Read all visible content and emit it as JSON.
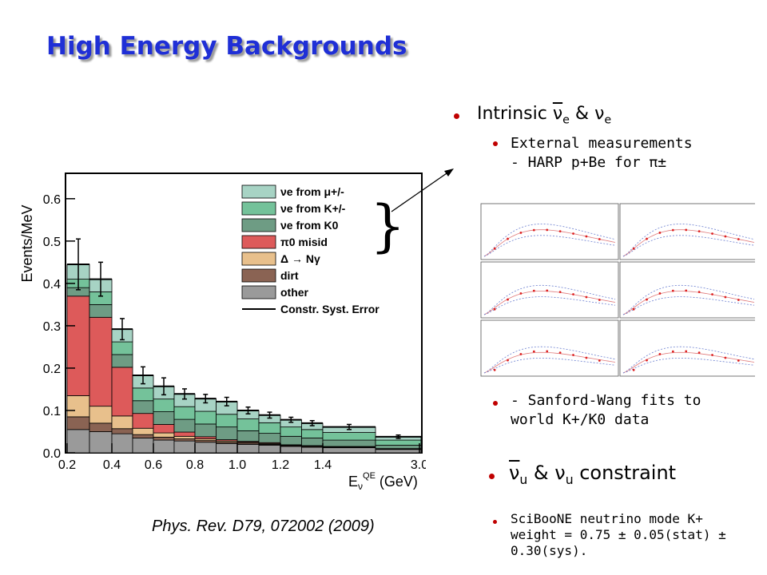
{
  "slide": {
    "title": "High Energy Backgrounds",
    "citation": "Phys. Rev. D79, 072002 (2009)",
    "bullets": {
      "b1_prefix": "Intrinsic ",
      "b1_nu": "ν",
      "b1_sub": "e",
      "b1_mid": " & ν",
      "b1_sub2": "e",
      "b2_line1": "External measurements",
      "b2_line2": " - HARP p+Be for π±",
      "b3_line1": " - Sanford-Wang fits to",
      "b3_line2": "world K+/K0 data",
      "b4_prefix": "ν",
      "b4_sub": "u",
      "b4_mid": " & ν",
      "b4_sub2": "u",
      "b4_suffix": " constraint",
      "b5_line1": "SciBooNE neutrino mode K+",
      "b5_line2": "weight =  0.75 ± 0.05(stat) ±",
      "b5_line3": "0.30(sys)."
    },
    "colors": {
      "title": "#1f2fd6",
      "bullet": "#c00000"
    }
  },
  "chart_data": {
    "type": "bar",
    "stacked": true,
    "ylabel": "Events/MeV",
    "xlabel": "E_ν^QE (GeV)",
    "x_tick_labels": [
      "0.2",
      "0.4",
      "0.6",
      "0.8",
      "1.0",
      "1.2",
      "1.4",
      "3.0"
    ],
    "y_tick_labels": [
      "0.0",
      "0.1",
      "0.2",
      "0.3",
      "0.4",
      "0.5",
      "0.6"
    ],
    "ylim": [
      0,
      0.66
    ],
    "bin_edges": [
      0.2,
      0.3,
      0.4,
      0.5,
      0.6,
      0.7,
      0.8,
      0.9,
      1.0,
      1.1,
      1.2,
      1.3,
      1.4,
      1.5,
      1.6
    ],
    "series": [
      {
        "name": "other",
        "color": "#9a9a9a",
        "values": [
          0.055,
          0.05,
          0.045,
          0.035,
          0.03,
          0.028,
          0.025,
          0.022,
          0.02,
          0.018,
          0.015,
          0.013,
          0.012,
          0.008
        ]
      },
      {
        "name": "dirt",
        "color": "#8a6353",
        "values": [
          0.03,
          0.02,
          0.012,
          0.008,
          0.007,
          0.005,
          0.004,
          0.003,
          0.003,
          0.002,
          0.002,
          0.002,
          0.001,
          0.001
        ]
      },
      {
        "name": "Δ → Nγ",
        "color": "#e8c08c",
        "values": [
          0.05,
          0.04,
          0.03,
          0.015,
          0.01,
          0.006,
          0.004,
          0.003,
          0.002,
          0.002,
          0.001,
          0.001,
          0.001,
          0.001
        ]
      },
      {
        "name": "π0 misid",
        "color": "#dd5a5a",
        "values": [
          0.235,
          0.21,
          0.115,
          0.035,
          0.02,
          0.01,
          0.005,
          0.003,
          0.002,
          0.002,
          0.001,
          0.001,
          0.001,
          0.0
        ]
      },
      {
        "name": "νe from K0",
        "color": "#6e9c84",
        "values": [
          0.02,
          0.03,
          0.03,
          0.03,
          0.03,
          0.03,
          0.03,
          0.03,
          0.025,
          0.022,
          0.02,
          0.018,
          0.015,
          0.008
        ]
      },
      {
        "name": "νe from K+/-",
        "color": "#74c29a",
        "values": [
          0.02,
          0.03,
          0.03,
          0.03,
          0.03,
          0.03,
          0.03,
          0.03,
          0.028,
          0.025,
          0.022,
          0.02,
          0.018,
          0.012
        ]
      },
      {
        "name": "νe from μ+/-",
        "color": "#a7d3c4",
        "values": [
          0.035,
          0.03,
          0.03,
          0.03,
          0.03,
          0.03,
          0.03,
          0.03,
          0.02,
          0.018,
          0.017,
          0.015,
          0.013,
          0.008
        ]
      }
    ],
    "errors": [
      0.06,
      0.04,
      0.025,
      0.02,
      0.02,
      0.012,
      0.01,
      0.01,
      0.008,
      0.007,
      0.006,
      0.006,
      0.006,
      0.004
    ],
    "legend": {
      "placement": "top-right",
      "extra_entry": "Constr. Syst. Error"
    }
  }
}
